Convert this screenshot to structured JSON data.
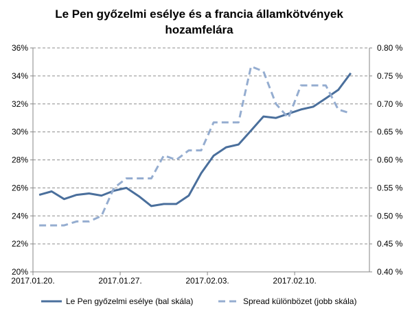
{
  "chart_data": {
    "type": "line",
    "title": [
      "Le Pen győzelmi esélye és a francia államkötvények",
      "hozamfelára"
    ],
    "xlabel": "",
    "ylabel": "",
    "x": [
      "2017.01.20.",
      "2017.01.21.",
      "2017.01.22.",
      "2017.01.23.",
      "2017.01.24.",
      "2017.01.25.",
      "2017.01.26.",
      "2017.01.27.",
      "2017.01.28.",
      "2017.01.29.",
      "2017.01.30.",
      "2017.01.31.",
      "2017.02.01.",
      "2017.02.02.",
      "2017.02.03.",
      "2017.02.04.",
      "2017.02.05.",
      "2017.02.06.",
      "2017.02.07.",
      "2017.02.08.",
      "2017.02.09.",
      "2017.02.10.",
      "2017.02.11.",
      "2017.02.12.",
      "2017.02.13.",
      "2017.02.14."
    ],
    "x_tick_labels": [
      "2017.01.20.",
      "2017.01.27.",
      "2017.02.03.",
      "2017.02.10."
    ],
    "x_tick_indices": [
      0,
      7,
      14,
      21
    ],
    "y_left": {
      "min": 20,
      "max": 36,
      "step": 2,
      "format": "percent0",
      "tick_labels": [
        "20%",
        "22%",
        "24%",
        "26%",
        "28%",
        "30%",
        "32%",
        "34%",
        "36%"
      ]
    },
    "y_right": {
      "min": 0.4,
      "max": 0.8,
      "step": 0.05,
      "format": "percent2",
      "tick_labels": [
        "0.40 %",
        "0.45 %",
        "0.50 %",
        "0.55 %",
        "0.60 %",
        "0.65 %",
        "0.70 %",
        "0.75 %",
        "0.80 %"
      ]
    },
    "grid": "horizontal-dashed",
    "legend_position": "bottom",
    "series": [
      {
        "name": "Le Pen győzelmi esélye (bal skála)",
        "axis": "left",
        "color": "#4a6f9c",
        "style": "solid",
        "values": [
          25.5,
          25.75,
          25.2,
          25.5,
          25.6,
          25.45,
          25.8,
          26.0,
          25.4,
          24.7,
          24.85,
          24.85,
          25.45,
          27.05,
          28.3,
          28.9,
          29.1,
          30.1,
          31.1,
          31.0,
          31.3,
          31.6,
          31.8,
          32.4,
          33.0,
          34.2
        ]
      },
      {
        "name": "Spread különbözet (jobb skála)",
        "axis": "right",
        "color": "#95add0",
        "style": "dashed",
        "values": [
          0.483,
          0.483,
          0.483,
          0.49,
          0.49,
          0.5,
          0.55,
          0.567,
          0.567,
          0.567,
          0.608,
          0.6,
          0.617,
          0.617,
          0.667,
          0.667,
          0.667,
          0.767,
          0.758,
          0.7,
          0.675,
          0.733,
          0.733,
          0.733,
          0.69,
          0.683
        ]
      }
    ],
    "last_point_index": 26
  }
}
